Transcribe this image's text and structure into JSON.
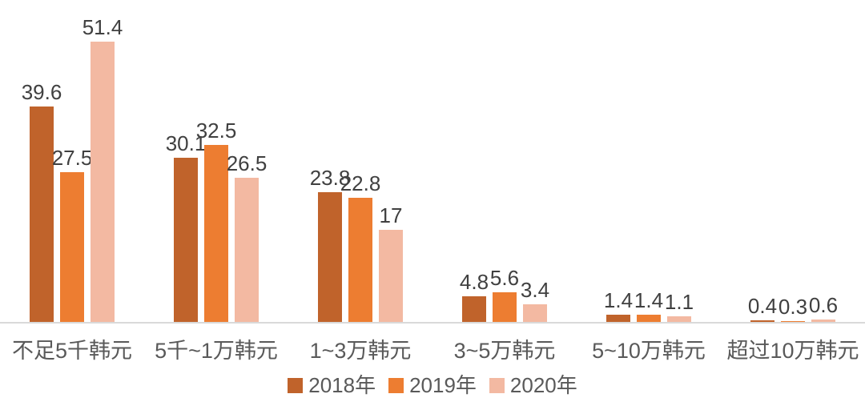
{
  "chart_data": {
    "type": "bar",
    "categories": [
      "不足5千韩元",
      "5千~1万韩元",
      "1~3万韩元",
      "3~5万韩元",
      "5~10万韩元",
      "超过10万韩元"
    ],
    "series": [
      {
        "name": "2018年",
        "color": "#c0632b",
        "values": [
          39.6,
          30.1,
          23.8,
          4.8,
          1.4,
          0.4
        ]
      },
      {
        "name": "2019年",
        "color": "#ed7d31",
        "values": [
          27.5,
          32.5,
          22.8,
          5.6,
          1.4,
          0.3
        ]
      },
      {
        "name": "2020年",
        "color": "#f3b9a2",
        "values": [
          51.4,
          26.5,
          17,
          3.4,
          1.1,
          0.6
        ]
      }
    ],
    "title": "",
    "xlabel": "",
    "ylabel": "",
    "ylim": [
      0,
      55
    ],
    "grid": false,
    "legend_position": "bottom",
    "value_labels": true,
    "value_label_color": "#404040",
    "axis_line_color": "#d9d9d9",
    "axis_label_color": "#595959"
  }
}
